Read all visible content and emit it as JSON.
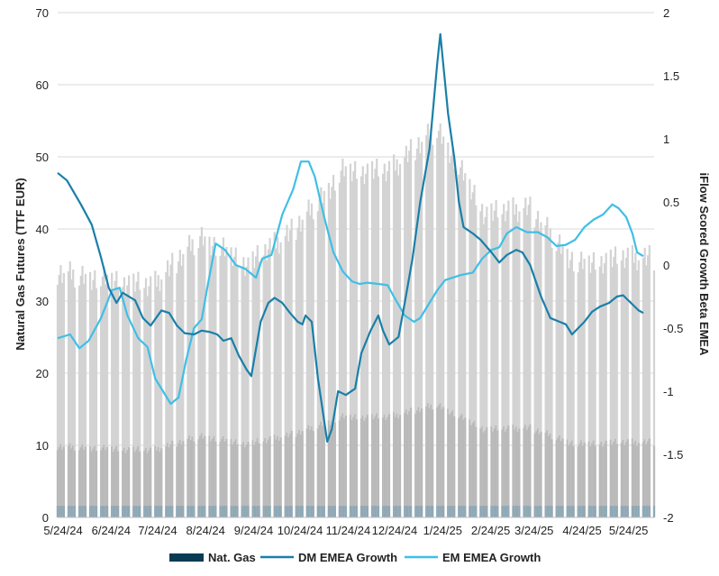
{
  "chart_data": {
    "type": "bar+line",
    "title": "",
    "x_tick_labels": [
      "5/24/24",
      "6/24/24",
      "7/24/24",
      "8/24/24",
      "9/24/24",
      "10/24/24",
      "11/24/24",
      "12/24/24",
      "1/24/25",
      "2/24/25",
      "3/24/25",
      "4/24/25",
      "5/24/25"
    ],
    "x_range": [
      "5/24/24",
      "6/13/25"
    ],
    "ylabel_left": "Natural Gas Futures (TTF EUR)",
    "ylabel_right": "iFlow Scored Growth Beta EMEA",
    "ylim_left": [
      0,
      70
    ],
    "ylim_right": [
      -2,
      2
    ],
    "yticks_left": [
      "0",
      "10",
      "20",
      "30",
      "40",
      "50",
      "60",
      "70"
    ],
    "yticks_right": [
      "-2",
      "-1.5",
      "-1",
      "-0.5",
      "0",
      "0.5",
      "1",
      "1.5",
      "2"
    ],
    "gridlines": true,
    "legend_position": "bottom-center",
    "colors": {
      "bars": "#d3d3d3",
      "nat_gas": "#0b3b54",
      "dm": "#1a7fa8",
      "em": "#3fbfe6"
    },
    "series": [
      {
        "name": "Nat. Gas",
        "type": "bar",
        "axis": "left",
        "t": [
          0,
          31,
          61,
          92,
          123,
          153,
          184,
          214,
          245,
          276,
          304,
          335,
          365,
          385
        ],
        "values": [
          34,
          33,
          32,
          39,
          35,
          40,
          48,
          48,
          54,
          42,
          43,
          35,
          36,
          36
        ]
      },
      {
        "name": "DM EMEA Growth",
        "type": "line",
        "axis": "right",
        "points": [
          [
            0,
            0.73
          ],
          [
            6,
            0.67
          ],
          [
            15,
            0.48
          ],
          [
            22,
            0.32
          ],
          [
            28,
            0.06
          ],
          [
            33,
            -0.18
          ],
          [
            38,
            -0.3
          ],
          [
            42,
            -0.22
          ],
          [
            50,
            -0.28
          ],
          [
            55,
            -0.42
          ],
          [
            60,
            -0.48
          ],
          [
            67,
            -0.36
          ],
          [
            72,
            -0.38
          ],
          [
            77,
            -0.48
          ],
          [
            82,
            -0.54
          ],
          [
            88,
            -0.55
          ],
          [
            93,
            -0.52
          ],
          [
            98,
            -0.53
          ],
          [
            103,
            -0.55
          ],
          [
            107,
            -0.6
          ],
          [
            112,
            -0.58
          ],
          [
            117,
            -0.72
          ],
          [
            122,
            -0.83
          ],
          [
            125,
            -0.88
          ],
          [
            131,
            -0.45
          ],
          [
            136,
            -0.3
          ],
          [
            140,
            -0.26
          ],
          [
            145,
            -0.3
          ],
          [
            150,
            -0.38
          ],
          [
            155,
            -0.45
          ],
          [
            158,
            -0.47
          ],
          [
            160,
            -0.4
          ],
          [
            164,
            -0.45
          ],
          [
            168,
            -0.9
          ],
          [
            174,
            -1.4
          ],
          [
            177,
            -1.3
          ],
          [
            181,
            -1.0
          ],
          [
            186,
            -1.03
          ],
          [
            192,
            -0.98
          ],
          [
            196,
            -0.7
          ],
          [
            202,
            -0.52
          ],
          [
            207,
            -0.4
          ],
          [
            210,
            -0.52
          ],
          [
            214,
            -0.63
          ],
          [
            220,
            -0.57
          ],
          [
            224,
            -0.3
          ],
          [
            229,
            0.05
          ],
          [
            234,
            0.5
          ],
          [
            240,
            0.92
          ],
          [
            245,
            1.6
          ],
          [
            247,
            1.83
          ],
          [
            252,
            1.2
          ],
          [
            256,
            0.85
          ],
          [
            259,
            0.5
          ],
          [
            262,
            0.3
          ],
          [
            268,
            0.25
          ],
          [
            273,
            0.2
          ],
          [
            280,
            0.1
          ],
          [
            285,
            0.02
          ],
          [
            290,
            0.08
          ],
          [
            296,
            0.12
          ],
          [
            300,
            0.1
          ],
          [
            305,
            0.0
          ],
          [
            312,
            -0.25
          ],
          [
            318,
            -0.42
          ],
          [
            324,
            -0.45
          ],
          [
            328,
            -0.47
          ],
          [
            332,
            -0.55
          ],
          [
            336,
            -0.5
          ],
          [
            340,
            -0.45
          ],
          [
            345,
            -0.37
          ],
          [
            350,
            -0.33
          ],
          [
            356,
            -0.3
          ],
          [
            361,
            -0.25
          ],
          [
            365,
            -0.24
          ],
          [
            370,
            -0.3
          ],
          [
            375,
            -0.36
          ],
          [
            378,
            -0.38
          ]
        ]
      },
      {
        "name": "EM EMEA Growth",
        "type": "line",
        "axis": "right",
        "points": [
          [
            0,
            -0.58
          ],
          [
            8,
            -0.55
          ],
          [
            14,
            -0.66
          ],
          [
            20,
            -0.6
          ],
          [
            28,
            -0.42
          ],
          [
            35,
            -0.2
          ],
          [
            40,
            -0.18
          ],
          [
            45,
            -0.4
          ],
          [
            52,
            -0.58
          ],
          [
            58,
            -0.65
          ],
          [
            63,
            -0.9
          ],
          [
            68,
            -1.0
          ],
          [
            73,
            -1.1
          ],
          [
            78,
            -1.05
          ],
          [
            83,
            -0.75
          ],
          [
            88,
            -0.5
          ],
          [
            93,
            -0.43
          ],
          [
            97,
            -0.15
          ],
          [
            102,
            0.17
          ],
          [
            108,
            0.12
          ],
          [
            115,
            0.0
          ],
          [
            121,
            -0.03
          ],
          [
            124,
            -0.06
          ],
          [
            128,
            -0.1
          ],
          [
            132,
            0.05
          ],
          [
            138,
            0.08
          ],
          [
            145,
            0.4
          ],
          [
            152,
            0.6
          ],
          [
            157,
            0.82
          ],
          [
            162,
            0.82
          ],
          [
            166,
            0.7
          ],
          [
            172,
            0.38
          ],
          [
            178,
            0.1
          ],
          [
            184,
            -0.05
          ],
          [
            190,
            -0.13
          ],
          [
            195,
            -0.15
          ],
          [
            200,
            -0.14
          ],
          [
            207,
            -0.15
          ],
          [
            213,
            -0.16
          ],
          [
            217,
            -0.25
          ],
          [
            224,
            -0.4
          ],
          [
            230,
            -0.45
          ],
          [
            234,
            -0.42
          ],
          [
            240,
            -0.3
          ],
          [
            245,
            -0.2
          ],
          [
            250,
            -0.12
          ],
          [
            260,
            -0.08
          ],
          [
            268,
            -0.06
          ],
          [
            274,
            0.05
          ],
          [
            280,
            0.12
          ],
          [
            285,
            0.14
          ],
          [
            290,
            0.25
          ],
          [
            296,
            0.3
          ],
          [
            303,
            0.26
          ],
          [
            310,
            0.26
          ],
          [
            316,
            0.22
          ],
          [
            322,
            0.15
          ],
          [
            328,
            0.16
          ],
          [
            334,
            0.2
          ],
          [
            340,
            0.3
          ],
          [
            346,
            0.36
          ],
          [
            352,
            0.4
          ],
          [
            358,
            0.48
          ],
          [
            362,
            0.45
          ],
          [
            367,
            0.38
          ],
          [
            371,
            0.25
          ],
          [
            374,
            0.1
          ],
          [
            378,
            0.07
          ]
        ]
      }
    ]
  }
}
